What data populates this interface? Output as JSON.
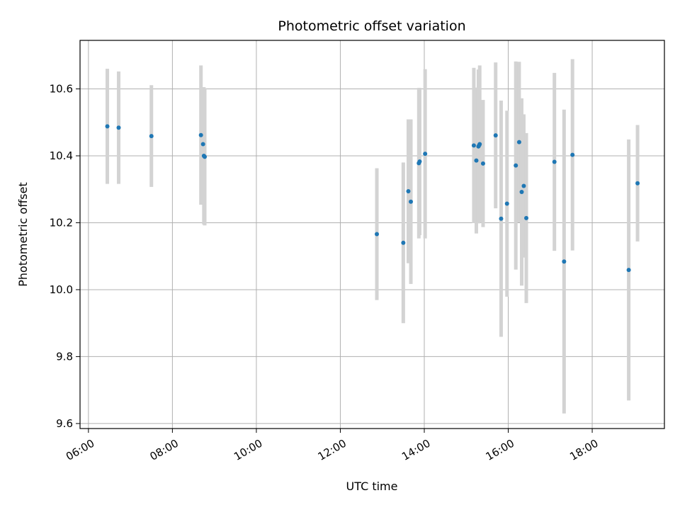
{
  "chart_data": {
    "type": "scatter",
    "title": "Photometric offset variation",
    "xlabel": "UTC time",
    "ylabel": "Photometric offset",
    "x_unit": "hour of day (UTC)",
    "xlim": [
      5.8,
      19.72
    ],
    "ylim": [
      9.585,
      10.745
    ],
    "x_ticks": [
      6,
      8,
      10,
      12,
      14,
      16,
      18
    ],
    "x_tick_labels": [
      "06:00",
      "08:00",
      "10:00",
      "12:00",
      "14:00",
      "16:00",
      "18:00"
    ],
    "y_ticks": [
      9.6,
      9.8,
      10.0,
      10.2,
      10.4,
      10.6
    ],
    "y_tick_labels": [
      "9.6",
      "9.8",
      "10.0",
      "10.2",
      "10.4",
      "10.6"
    ],
    "grid": true,
    "legend": "none",
    "point_color": "#1f77b4",
    "errorbar_color": "#d3d3d3",
    "series": [
      {
        "x": [
          6.45,
          6.72,
          7.5,
          8.68,
          8.73,
          8.75,
          8.77,
          12.87,
          13.5,
          13.62,
          13.68,
          13.87,
          13.89,
          14.02,
          15.18,
          15.24,
          15.29,
          15.31,
          15.32,
          15.4,
          15.7,
          15.83,
          15.97,
          16.18,
          16.26,
          16.32,
          16.37,
          16.43,
          17.1,
          17.33,
          17.53,
          18.87,
          19.08
        ],
        "y": [
          10.488,
          10.484,
          10.459,
          10.462,
          10.435,
          10.4,
          10.397,
          10.166,
          10.14,
          10.294,
          10.263,
          10.378,
          10.383,
          10.406,
          10.431,
          10.386,
          10.428,
          10.432,
          10.435,
          10.377,
          10.461,
          10.212,
          10.257,
          10.371,
          10.441,
          10.292,
          10.31,
          10.214,
          10.382,
          10.084,
          10.403,
          10.059,
          10.318
        ],
        "yerr": [
          0.172,
          0.168,
          0.152,
          0.208,
          0.17,
          0.205,
          0.205,
          0.197,
          0.24,
          0.215,
          0.246,
          0.225,
          0.22,
          0.253,
          0.232,
          0.218,
          0.23,
          0.22,
          0.235,
          0.19,
          0.218,
          0.353,
          0.278,
          0.311,
          0.24,
          0.28,
          0.214,
          0.254,
          0.266,
          0.454,
          0.286,
          0.39,
          0.174
        ]
      }
    ]
  }
}
